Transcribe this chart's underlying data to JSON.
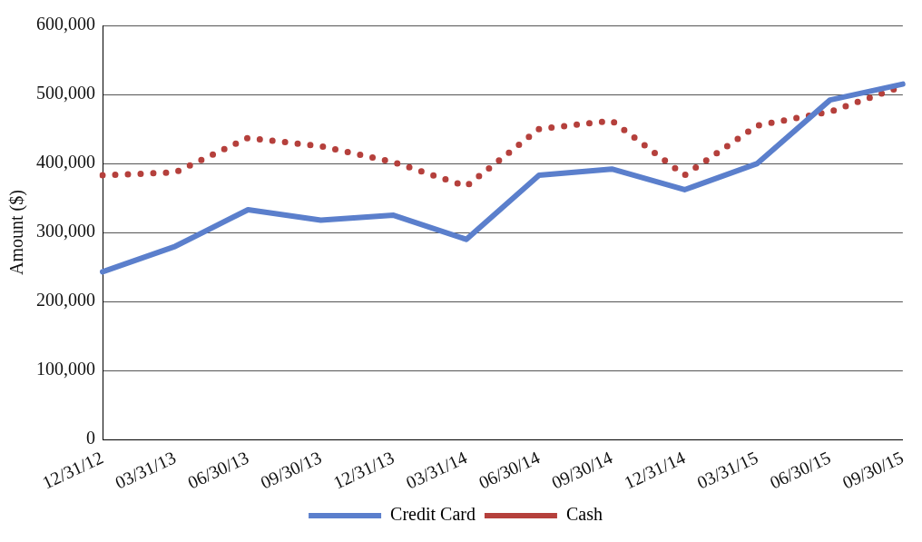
{
  "chart_data": {
    "type": "line",
    "ylabel": "Amount ($)",
    "categories": [
      "12/31/12",
      "03/31/13",
      "06/30/13",
      "09/30/13",
      "12/31/13",
      "03/31/14",
      "06/30/14",
      "09/30/14",
      "12/31/14",
      "03/31/15",
      "06/30/15",
      "09/30/15"
    ],
    "series": [
      {
        "name": "Credit Card",
        "color": "#5b7fcc",
        "line_style": "solid",
        "values": [
          243000,
          280000,
          333000,
          318000,
          325000,
          290000,
          383000,
          392000,
          362000,
          400000,
          492000,
          515000
        ]
      },
      {
        "name": "Cash",
        "color": "#b5403c",
        "line_style": "dotted",
        "values": [
          383000,
          387000,
          437000,
          425000,
          402000,
          367000,
          450000,
          462000,
          383000,
          455000,
          475000,
          512000
        ]
      }
    ],
    "ylim": [
      0,
      600000
    ],
    "yticks": [
      {
        "value": 0,
        "label": "0"
      },
      {
        "value": 100000,
        "label": "100,000"
      },
      {
        "value": 200000,
        "label": "200,000"
      },
      {
        "value": 300000,
        "label": "300,000"
      },
      {
        "value": 400000,
        "label": "400,000"
      },
      {
        "value": 500000,
        "label": "500,000"
      },
      {
        "value": 600000,
        "label": "600,000"
      }
    ],
    "grid": "y",
    "legend": "bottom",
    "marker": "none"
  }
}
